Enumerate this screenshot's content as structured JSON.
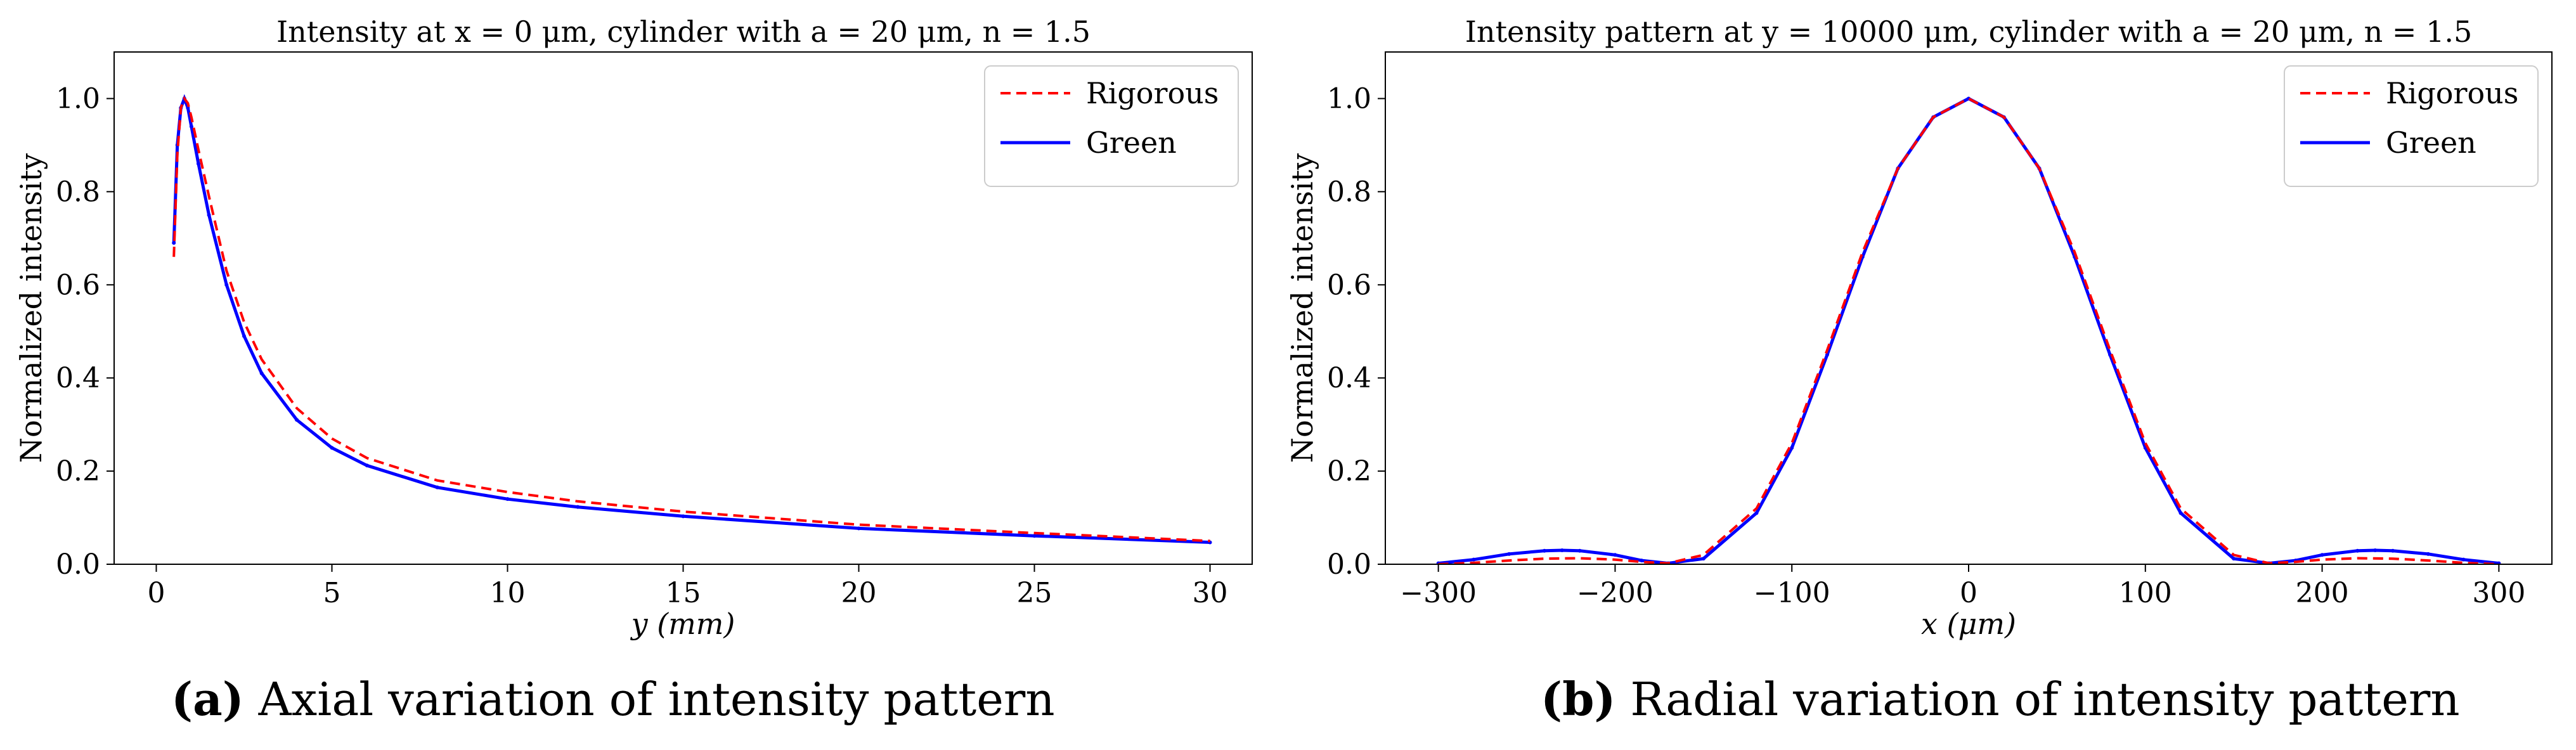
{
  "chart_data": [
    {
      "type": "line",
      "title": "Intensity at x = 0 μm, cylinder with a = 20 μm, n = 1.5",
      "xlabel": "y (mm)",
      "ylabel": "Normalized intensity",
      "xlim": [
        -1.2,
        31.2
      ],
      "ylim": [
        0.0,
        1.1
      ],
      "xticks": [
        0,
        5,
        10,
        15,
        20,
        25,
        30
      ],
      "yticks": [
        0.0,
        0.2,
        0.4,
        0.6,
        0.8,
        1.0
      ],
      "xtick_labels": [
        "0",
        "5",
        "10",
        "15",
        "20",
        "25",
        "30"
      ],
      "ytick_labels": [
        "0.0",
        "0.2",
        "0.4",
        "0.6",
        "0.8",
        "1.0"
      ],
      "legend_position": "top-right",
      "series": [
        {
          "name": "Rigorous",
          "color": "#ff0000",
          "style": "dashed",
          "x": [
            0.5,
            0.6,
            0.7,
            0.8,
            0.9,
            1.0,
            1.2,
            1.5,
            2,
            2.5,
            3,
            4,
            5,
            6,
            8,
            10,
            12,
            15,
            20,
            25,
            30
          ],
          "y": [
            0.66,
            0.88,
            0.98,
            1.0,
            0.99,
            0.96,
            0.89,
            0.79,
            0.63,
            0.52,
            0.44,
            0.335,
            0.27,
            0.228,
            0.18,
            0.155,
            0.135,
            0.113,
            0.085,
            0.067,
            0.05
          ]
        },
        {
          "name": "Green",
          "color": "#0000ff",
          "style": "solid-markers",
          "x": [
            0.5,
            0.6,
            0.7,
            0.8,
            0.9,
            1.0,
            1.2,
            1.5,
            2,
            2.5,
            3,
            4,
            5,
            6,
            8,
            10,
            12,
            15,
            20,
            25,
            30
          ],
          "y": [
            0.69,
            0.9,
            0.98,
            1.0,
            0.98,
            0.94,
            0.86,
            0.75,
            0.6,
            0.49,
            0.41,
            0.31,
            0.25,
            0.212,
            0.165,
            0.14,
            0.123,
            0.103,
            0.077,
            0.061,
            0.047
          ]
        }
      ]
    },
    {
      "type": "line",
      "title": "Intensity pattern at y = 10000 μm, cylinder with a = 20 μm, n = 1.5",
      "xlabel": "x (μm)",
      "ylabel": "Normalized intensity",
      "xlim": [
        -330,
        330
      ],
      "ylim": [
        0.0,
        1.1
      ],
      "xticks": [
        -300,
        -200,
        -100,
        0,
        100,
        200,
        300
      ],
      "yticks": [
        0.0,
        0.2,
        0.4,
        0.6,
        0.8,
        1.0
      ],
      "xtick_labels": [
        "−300",
        "−200",
        "−100",
        "0",
        "100",
        "200",
        "300"
      ],
      "ytick_labels": [
        "0.0",
        "0.2",
        "0.4",
        "0.6",
        "0.8",
        "1.0"
      ],
      "legend_position": "top-right",
      "series": [
        {
          "name": "Rigorous",
          "color": "#ff0000",
          "style": "dashed",
          "x": [
            -300,
            -280,
            -260,
            -240,
            -220,
            -200,
            -185,
            -170,
            -150,
            -120,
            -100,
            -80,
            -60,
            -40,
            -20,
            0,
            20,
            40,
            60,
            80,
            100,
            120,
            150,
            170,
            185,
            200,
            220,
            240,
            260,
            280,
            300
          ],
          "y": [
            0.0,
            0.003,
            0.008,
            0.012,
            0.013,
            0.01,
            0.005,
            0.002,
            0.02,
            0.12,
            0.26,
            0.46,
            0.67,
            0.85,
            0.96,
            1.0,
            0.96,
            0.85,
            0.67,
            0.46,
            0.26,
            0.12,
            0.02,
            0.002,
            0.005,
            0.01,
            0.013,
            0.012,
            0.008,
            0.003,
            0.0
          ]
        },
        {
          "name": "Green",
          "color": "#0000ff",
          "style": "solid-markers",
          "x": [
            -300,
            -280,
            -260,
            -240,
            -230,
            -220,
            -200,
            -185,
            -170,
            -150,
            -120,
            -100,
            -80,
            -60,
            -40,
            -20,
            0,
            20,
            40,
            60,
            80,
            100,
            120,
            150,
            170,
            185,
            200,
            220,
            230,
            240,
            260,
            280,
            300
          ],
          "y": [
            0.002,
            0.01,
            0.022,
            0.029,
            0.03,
            0.029,
            0.02,
            0.008,
            0.002,
            0.012,
            0.11,
            0.25,
            0.45,
            0.66,
            0.85,
            0.96,
            1.0,
            0.96,
            0.85,
            0.66,
            0.45,
            0.25,
            0.11,
            0.012,
            0.002,
            0.008,
            0.02,
            0.029,
            0.03,
            0.029,
            0.022,
            0.01,
            0.002
          ]
        }
      ]
    }
  ],
  "captions": [
    {
      "label": "(a)",
      "text": " Axial variation of intensity pattern"
    },
    {
      "label": "(b)",
      "text": " Radial variation of intensity pattern"
    }
  ]
}
